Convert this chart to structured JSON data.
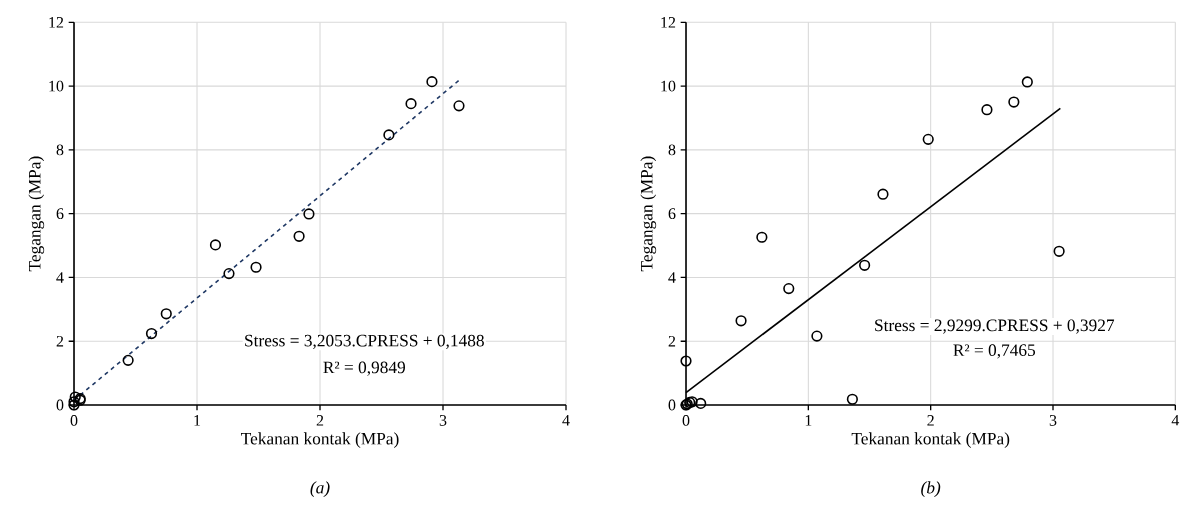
{
  "chart_data": [
    {
      "type": "scatter",
      "xlabel": "Tekanan kontak (MPa)",
      "ylabel": "Tegangan (MPa)",
      "xlim": [
        0,
        4
      ],
      "ylim": [
        0,
        12
      ],
      "xticks": [
        0,
        1,
        2,
        3,
        4
      ],
      "yticks": [
        0,
        2,
        4,
        6,
        8,
        10,
        12
      ],
      "grid": true,
      "series": [
        {
          "marker": "circle",
          "color": "#000000",
          "x": [
            0,
            0,
            0.01,
            0.05,
            0.05,
            0.44,
            0.63,
            0.75,
            1.15,
            1.26,
            1.48,
            1.83,
            1.91,
            2.56,
            2.74,
            2.91,
            3.13
          ],
          "values": [
            0,
            0.1,
            0.25,
            0.2,
            0.15,
            1.4,
            2.24,
            2.86,
            5.02,
            4.12,
            4.32,
            5.29,
            5.99,
            8.47,
            9.45,
            10.14,
            9.38
          ]
        },
        {
          "type": "line",
          "marker": "none",
          "color": "#1f3864",
          "line_style": "dashed",
          "x": [
            0,
            3.13
          ],
          "values": [
            0.15,
            10.18
          ]
        }
      ],
      "annotations": [
        "Stress = 3,2053.CPRESS  + 0,1488",
        "R² = 0,9849",
        "(a)"
      ]
    },
    {
      "type": "scatter",
      "xlabel": "Tekanan kontak (MPa)",
      "ylabel": "Tegangan (MPa)",
      "xlim": [
        0,
        4
      ],
      "ylim": [
        0,
        12
      ],
      "xticks": [
        0,
        1,
        2,
        3,
        4
      ],
      "yticks": [
        0,
        2,
        4,
        6,
        8,
        10,
        12
      ],
      "grid": true,
      "series": [
        {
          "marker": "circle",
          "color": "#000000",
          "x": [
            0,
            0.01,
            0.03,
            0.05,
            0.12,
            0,
            0.45,
            0.62,
            0.84,
            1.07,
            1.36,
            1.46,
            1.61,
            1.98,
            2.46,
            2.68,
            2.79,
            3.05
          ],
          "values": [
            0,
            0.03,
            0.08,
            0.1,
            0.05,
            1.38,
            2.64,
            5.26,
            3.65,
            2.16,
            0.18,
            4.38,
            6.61,
            8.33,
            9.26,
            9.5,
            10.13,
            4.82
          ]
        },
        {
          "type": "line",
          "marker": "none",
          "color": "#000000",
          "line_style": "solid",
          "x": [
            0,
            3.06
          ],
          "values": [
            0.39,
            9.3
          ]
        }
      ],
      "annotations": [
        "Stress = 2,9299.CPRESS  + 0,3927",
        "R² = 0,7465",
        "(b)"
      ]
    }
  ]
}
